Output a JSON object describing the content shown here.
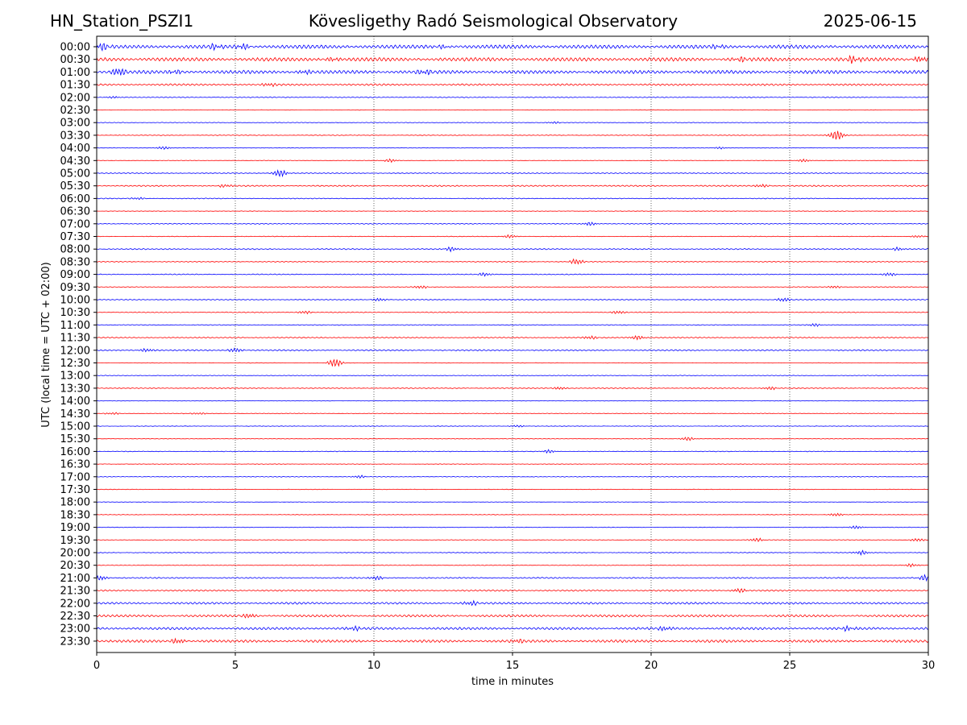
{
  "header": {
    "station": "HN_Station_PSZI1",
    "observatory": "Kövesligethy Radó Seismological Observatory",
    "date": "2025-06-15"
  },
  "chart_data": {
    "type": "line",
    "title": "Kövesligethy Radó Seismological Observatory",
    "xlabel": "time in minutes",
    "ylabel": "UTC (local time = UTC + 02:00)",
    "xlim": [
      0,
      30
    ],
    "x_ticks": [
      0,
      5,
      10,
      15,
      20,
      25,
      30
    ],
    "grid": "vertical dotted lines at x = 5, 10, 15, 20, 25",
    "colors": {
      "even_rows": "#0000ff",
      "odd_rows": "#ff0000"
    },
    "rows": [
      {
        "label": "00:00",
        "activity": 0.9,
        "events": [
          {
            "x": 0.2,
            "amp": 0.6
          },
          {
            "x": 4.3,
            "amp": 0.5
          },
          {
            "x": 5.3,
            "amp": 0.5
          },
          {
            "x": 12.5,
            "amp": 0.3
          },
          {
            "x": 22.4,
            "amp": 0.3
          }
        ]
      },
      {
        "label": "00:30",
        "activity": 0.9,
        "events": [
          {
            "x": 8.5,
            "amp": 0.4
          },
          {
            "x": 23.2,
            "amp": 0.4
          },
          {
            "x": 27.3,
            "amp": 0.6
          },
          {
            "x": 29.7,
            "amp": 0.5
          }
        ]
      },
      {
        "label": "01:00",
        "activity": 0.85,
        "events": [
          {
            "x": 0.8,
            "amp": 0.8
          },
          {
            "x": 2.8,
            "amp": 0.4
          },
          {
            "x": 7.5,
            "amp": 0.4
          },
          {
            "x": 11.8,
            "amp": 0.5
          }
        ]
      },
      {
        "label": "01:30",
        "activity": 0.45,
        "events": [
          {
            "x": 6.2,
            "amp": 0.3
          }
        ]
      },
      {
        "label": "02:00",
        "activity": 0.2,
        "events": [
          {
            "x": 0.6,
            "amp": 0.2
          }
        ]
      },
      {
        "label": "02:30",
        "activity": 0.1,
        "events": []
      },
      {
        "label": "03:00",
        "activity": 0.15,
        "events": [
          {
            "x": 16.5,
            "amp": 0.2
          }
        ]
      },
      {
        "label": "03:30",
        "activity": 0.15,
        "events": [
          {
            "x": 26.7,
            "amp": 1.0
          }
        ]
      },
      {
        "label": "04:00",
        "activity": 0.12,
        "events": [
          {
            "x": 2.4,
            "amp": 0.3
          },
          {
            "x": 22.5,
            "amp": 0.2
          }
        ]
      },
      {
        "label": "04:30",
        "activity": 0.12,
        "events": [
          {
            "x": 10.6,
            "amp": 0.3
          },
          {
            "x": 25.5,
            "amp": 0.3
          }
        ]
      },
      {
        "label": "05:00",
        "activity": 0.2,
        "events": [
          {
            "x": 6.6,
            "amp": 0.7
          }
        ]
      },
      {
        "label": "05:30",
        "activity": 0.3,
        "events": [
          {
            "x": 4.6,
            "amp": 0.3
          },
          {
            "x": 24.0,
            "amp": 0.3
          }
        ]
      },
      {
        "label": "06:00",
        "activity": 0.2,
        "events": [
          {
            "x": 1.5,
            "amp": 0.2
          }
        ]
      },
      {
        "label": "06:30",
        "activity": 0.1,
        "events": []
      },
      {
        "label": "07:00",
        "activity": 0.2,
        "events": [
          {
            "x": 17.8,
            "amp": 0.35
          }
        ]
      },
      {
        "label": "07:30",
        "activity": 0.12,
        "events": [
          {
            "x": 14.9,
            "amp": 0.3
          },
          {
            "x": 29.6,
            "amp": 0.2
          }
        ]
      },
      {
        "label": "08:00",
        "activity": 0.25,
        "events": [
          {
            "x": 12.8,
            "amp": 0.4
          },
          {
            "x": 28.9,
            "amp": 0.3
          }
        ]
      },
      {
        "label": "08:30",
        "activity": 0.2,
        "events": [
          {
            "x": 17.3,
            "amp": 0.5
          }
        ]
      },
      {
        "label": "09:00",
        "activity": 0.2,
        "events": [
          {
            "x": 14.0,
            "amp": 0.3
          },
          {
            "x": 28.6,
            "amp": 0.3
          }
        ]
      },
      {
        "label": "09:30",
        "activity": 0.18,
        "events": [
          {
            "x": 11.7,
            "amp": 0.3
          },
          {
            "x": 26.6,
            "amp": 0.25
          }
        ]
      },
      {
        "label": "10:00",
        "activity": 0.2,
        "events": [
          {
            "x": 10.2,
            "amp": 0.3
          },
          {
            "x": 24.8,
            "amp": 0.35
          }
        ]
      },
      {
        "label": "10:30",
        "activity": 0.2,
        "events": [
          {
            "x": 7.5,
            "amp": 0.3
          },
          {
            "x": 18.8,
            "amp": 0.3
          }
        ]
      },
      {
        "label": "11:00",
        "activity": 0.18,
        "events": [
          {
            "x": 25.9,
            "amp": 0.3
          }
        ]
      },
      {
        "label": "11:30",
        "activity": 0.25,
        "events": [
          {
            "x": 17.8,
            "amp": 0.3
          },
          {
            "x": 19.5,
            "amp": 0.4
          }
        ]
      },
      {
        "label": "12:00",
        "activity": 0.3,
        "events": [
          {
            "x": 1.8,
            "amp": 0.35
          },
          {
            "x": 5.0,
            "amp": 0.4
          }
        ]
      },
      {
        "label": "12:30",
        "activity": 0.1,
        "events": [
          {
            "x": 8.6,
            "amp": 0.8
          }
        ]
      },
      {
        "label": "13:00",
        "activity": 0.15,
        "events": []
      },
      {
        "label": "13:30",
        "activity": 0.2,
        "events": [
          {
            "x": 16.7,
            "amp": 0.25
          },
          {
            "x": 24.3,
            "amp": 0.3
          }
        ]
      },
      {
        "label": "14:00",
        "activity": 0.1,
        "events": []
      },
      {
        "label": "14:30",
        "activity": 0.15,
        "events": [
          {
            "x": 0.6,
            "amp": 0.2
          },
          {
            "x": 3.7,
            "amp": 0.2
          }
        ]
      },
      {
        "label": "15:00",
        "activity": 0.1,
        "events": [
          {
            "x": 15.2,
            "amp": 0.2
          }
        ]
      },
      {
        "label": "15:30",
        "activity": 0.12,
        "events": [
          {
            "x": 21.3,
            "amp": 0.35
          }
        ]
      },
      {
        "label": "16:00",
        "activity": 0.15,
        "events": [
          {
            "x": 16.3,
            "amp": 0.3
          }
        ]
      },
      {
        "label": "16:30",
        "activity": 0.1,
        "events": []
      },
      {
        "label": "17:00",
        "activity": 0.15,
        "events": [
          {
            "x": 9.5,
            "amp": 0.25
          }
        ]
      },
      {
        "label": "17:30",
        "activity": 0.1,
        "events": []
      },
      {
        "label": "18:00",
        "activity": 0.08,
        "events": []
      },
      {
        "label": "18:30",
        "activity": 0.1,
        "events": [
          {
            "x": 26.7,
            "amp": 0.3
          }
        ]
      },
      {
        "label": "19:00",
        "activity": 0.12,
        "events": [
          {
            "x": 27.4,
            "amp": 0.3
          }
        ]
      },
      {
        "label": "19:30",
        "activity": 0.15,
        "events": [
          {
            "x": 23.8,
            "amp": 0.35
          },
          {
            "x": 29.6,
            "amp": 0.3
          }
        ]
      },
      {
        "label": "20:00",
        "activity": 0.15,
        "events": [
          {
            "x": 27.6,
            "amp": 0.4
          }
        ]
      },
      {
        "label": "20:30",
        "activity": 0.15,
        "events": [
          {
            "x": 29.4,
            "amp": 0.3
          }
        ]
      },
      {
        "label": "21:00",
        "activity": 0.3,
        "events": [
          {
            "x": 0.1,
            "amp": 0.5
          },
          {
            "x": 10.1,
            "amp": 0.4
          },
          {
            "x": 29.9,
            "amp": 0.6
          }
        ]
      },
      {
        "label": "21:30",
        "activity": 0.35,
        "events": [
          {
            "x": 23.2,
            "amp": 0.4
          }
        ]
      },
      {
        "label": "22:00",
        "activity": 0.5,
        "events": [
          {
            "x": 13.5,
            "amp": 0.4
          }
        ]
      },
      {
        "label": "22:30",
        "activity": 0.55,
        "events": [
          {
            "x": 5.5,
            "amp": 0.4
          }
        ]
      },
      {
        "label": "23:00",
        "activity": 0.6,
        "events": [
          {
            "x": 9.3,
            "amp": 0.4
          },
          {
            "x": 20.5,
            "amp": 0.4
          },
          {
            "x": 27.1,
            "amp": 0.4
          }
        ]
      },
      {
        "label": "23:30",
        "activity": 0.65,
        "events": [
          {
            "x": 2.9,
            "amp": 0.5
          },
          {
            "x": 15.2,
            "amp": 0.4
          }
        ]
      }
    ]
  }
}
